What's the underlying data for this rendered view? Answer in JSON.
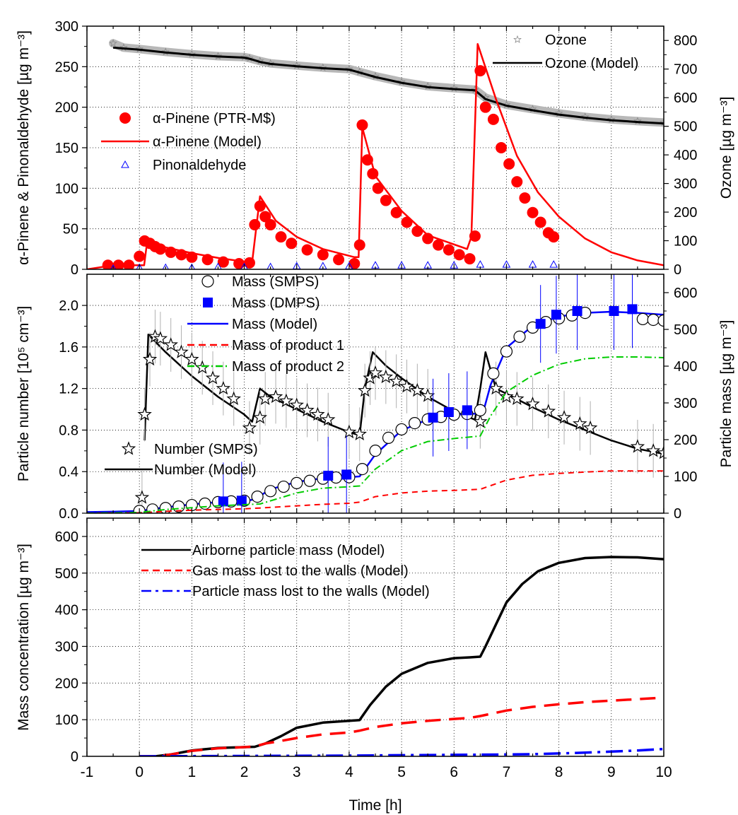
{
  "chart_data": [
    {
      "type": "scatter",
      "panel": "top",
      "xlim": [
        -1,
        10
      ],
      "ylim": [
        0,
        300
      ],
      "y2lim": [
        0,
        850
      ],
      "ylabel": "α-Pinene & Pinonaldehyde [µg m⁻³]",
      "y2label": "Ozone [µg m⁻³]",
      "yticks": [
        "0",
        "50",
        "100",
        "150",
        "200",
        "250",
        "300"
      ],
      "y2ticks": [
        "0",
        "100",
        "200",
        "300",
        "400",
        "500",
        "600",
        "700",
        "800"
      ],
      "grid": true,
      "legend_left": [
        {
          "label": "α-Pinene (PTR-M$)",
          "style": "red-dot"
        },
        {
          "label": "α-Pinene (Model)",
          "style": "red-line"
        },
        {
          "label": "Pinonaldehyde",
          "style": "blue-triangle"
        }
      ],
      "legend_right": [
        {
          "label": "Ozone",
          "style": "gray-star"
        },
        {
          "label": "Ozone  (Model)",
          "style": "black-line"
        }
      ],
      "series": [
        {
          "name": "Ozone",
          "axis": "right",
          "color": "#a0a0a0",
          "x": [
            -0.5,
            -0.3,
            0,
            0.5,
            1,
            1.5,
            2,
            2.1,
            2.3,
            2.5,
            3,
            3.5,
            4,
            4.2,
            4.5,
            5,
            5.5,
            6,
            6.4,
            6.6,
            7,
            7.5,
            8,
            8.5,
            9,
            9.5,
            10
          ],
          "y": [
            790,
            775,
            770,
            760,
            752,
            745,
            742,
            738,
            728,
            720,
            712,
            705,
            700,
            690,
            675,
            655,
            640,
            633,
            628,
            600,
            575,
            560,
            545,
            533,
            524,
            518,
            513
          ]
        },
        {
          "name": "Ozone  (Model)",
          "axis": "right",
          "color": "#000000",
          "x": [
            -0.5,
            0,
            0.5,
            1,
            1.5,
            2,
            2.1,
            2.3,
            2.5,
            3,
            3.5,
            4,
            4.2,
            4.5,
            5,
            5.5,
            6,
            6.4,
            6.6,
            7,
            7.5,
            8,
            8.5,
            9,
            9.5,
            10
          ],
          "y": [
            775,
            768,
            758,
            750,
            744,
            740,
            736,
            725,
            718,
            710,
            703,
            698,
            688,
            672,
            652,
            637,
            630,
            626,
            595,
            572,
            556,
            541,
            530,
            521,
            515,
            510
          ]
        },
        {
          "name": "α-Pinene (Model)",
          "axis": "left",
          "color": "#ff0000",
          "x": [
            -1,
            -0.5,
            0,
            0.09,
            0.15,
            0.5,
            1,
            1.5,
            2.05,
            2.15,
            2.3,
            2.6,
            3,
            3.5,
            4.1,
            4.18,
            4.25,
            4.5,
            5,
            5.5,
            6.25,
            6.33,
            6.45,
            6.8,
            7.2,
            7.6,
            8,
            8.5,
            9,
            9.5,
            10
          ],
          "y": [
            0,
            5,
            5,
            5,
            35,
            27,
            20,
            14,
            9,
            9,
            90,
            60,
            40,
            25,
            15,
            15,
            175,
            115,
            72,
            42,
            25,
            40,
            278,
            210,
            140,
            95,
            65,
            38,
            21,
            11,
            5
          ]
        },
        {
          "name": "α-Pinene (PTR-M$)",
          "axis": "left",
          "color": "#ff0000",
          "x": [
            -0.6,
            -0.4,
            -0.2,
            0,
            0.1,
            0.2,
            0.3,
            0.4,
            0.6,
            0.8,
            1,
            1.3,
            1.6,
            1.9,
            2.1,
            2.2,
            2.3,
            2.4,
            2.5,
            2.7,
            2.9,
            3.2,
            3.5,
            3.8,
            4.1,
            4.2,
            4.25,
            4.35,
            4.45,
            4.55,
            4.7,
            4.9,
            5.1,
            5.3,
            5.5,
            5.7,
            5.9,
            6.1,
            6.3,
            6.4,
            6.5,
            6.6,
            6.75,
            6.9,
            7.05,
            7.2,
            7.35,
            7.5,
            7.65,
            7.8,
            7.9
          ],
          "y": [
            5,
            5,
            5,
            16,
            35,
            32,
            28,
            25,
            21,
            18,
            15,
            12,
            9,
            7,
            8,
            55,
            78,
            65,
            55,
            40,
            32,
            24,
            18,
            12,
            7,
            30,
            178,
            135,
            118,
            100,
            85,
            70,
            58,
            47,
            38,
            30,
            24,
            18,
            13,
            41,
            245,
            200,
            185,
            150,
            130,
            108,
            88,
            70,
            58,
            45,
            40
          ]
        },
        {
          "name": "Pinonaldehyde",
          "axis": "left",
          "color": "#0000ff",
          "x": [
            -0.5,
            0,
            0.5,
            1,
            1.5,
            2,
            2.5,
            3,
            3.5,
            4,
            4.5,
            5,
            5.5,
            6,
            6.5,
            7,
            7.5,
            7.9
          ],
          "y": [
            1,
            2,
            2,
            2,
            3,
            3,
            3,
            4,
            4,
            4,
            5,
            5,
            5,
            5,
            6,
            6,
            6,
            6
          ]
        }
      ]
    },
    {
      "type": "scatter",
      "panel": "middle",
      "xlim": [
        -1,
        10
      ],
      "ylim": [
        0,
        2.3
      ],
      "y2lim": [
        0,
        650
      ],
      "ylabel": "Particle number [10⁵ cm⁻³]",
      "y2label": "Particle mass [µg m⁻³]",
      "yticks": [
        "0.0",
        "0.4",
        "0.8",
        "1.2",
        "1.6",
        "2.0"
      ],
      "y2ticks": [
        "0",
        "100",
        "200",
        "300",
        "400",
        "500",
        "600"
      ],
      "grid": true,
      "legend_top": [
        {
          "label": "Mass (SMPS)",
          "style": "open-circle"
        },
        {
          "label": "Mass (DMPS)",
          "style": "blue-square"
        },
        {
          "label": "Mass (Model)",
          "style": "blue-line"
        },
        {
          "label": "Mass of product 1",
          "style": "red-dash"
        },
        {
          "label": "Mass of product 2",
          "style": "green-dashdot"
        }
      ],
      "legend_bottom": [
        {
          "label": "Number (SMPS)",
          "style": "open-star"
        },
        {
          "label": "Number (Model)",
          "style": "black-line"
        }
      ],
      "series": [
        {
          "name": "Number (Model)",
          "axis": "left",
          "color": "#000000",
          "x": [
            0.1,
            0.17,
            0.5,
            1,
            1.5,
            2,
            2.15,
            2.3,
            2.5,
            3,
            3.5,
            4,
            4.2,
            4.3,
            4.45,
            4.7,
            5,
            5.5,
            6,
            6.4,
            6.5,
            6.6,
            6.8,
            7,
            7.5,
            8,
            8.5,
            9,
            9.5,
            10
          ],
          "y": [
            0.7,
            1.72,
            1.55,
            1.32,
            1.12,
            0.95,
            0.88,
            1.2,
            1.12,
            1.0,
            0.88,
            0.78,
            0.75,
            1.2,
            1.55,
            1.42,
            1.3,
            1.12,
            0.98,
            0.9,
            1.2,
            1.55,
            1.2,
            1.15,
            1.02,
            0.9,
            0.8,
            0.7,
            0.62,
            0.57
          ]
        },
        {
          "name": "Number (SMPS)",
          "axis": "left",
          "color": "#000000",
          "x": [
            0.05,
            0.1,
            0.2,
            0.3,
            0.4,
            0.6,
            0.8,
            1,
            1.2,
            1.4,
            1.6,
            1.8,
            2.1,
            2.3,
            2.4,
            2.6,
            2.8,
            3,
            3.2,
            3.4,
            3.6,
            4,
            4.2,
            4.3,
            4.4,
            4.5,
            4.7,
            4.9,
            5.1,
            5.3,
            5.5,
            6.5,
            6.8,
            7,
            7.2,
            7.5,
            7.8,
            8.1,
            8.4,
            8.6,
            9.5,
            9.8,
            10
          ],
          "y": [
            0.15,
            0.95,
            1.48,
            1.7,
            1.68,
            1.62,
            1.55,
            1.48,
            1.4,
            1.3,
            1.2,
            1.1,
            0.82,
            0.92,
            1.1,
            1.12,
            1.08,
            1.04,
            0.99,
            0.95,
            0.9,
            0.78,
            0.76,
            1.18,
            1.3,
            1.35,
            1.31,
            1.27,
            1.22,
            1.18,
            1.13,
            0.88,
            1.2,
            1.12,
            1.1,
            1.05,
            0.98,
            0.92,
            0.86,
            0.82,
            0.64,
            0.6,
            0.58
          ]
        },
        {
          "name": "Mass (Model)",
          "axis": "right",
          "color": "#0000ff",
          "x": [
            -1,
            -0.5,
            0,
            0.5,
            1,
            1.5,
            2,
            2.2,
            2.5,
            3,
            3.5,
            4,
            4.2,
            4.5,
            5,
            5.5,
            6,
            6.3,
            6.55,
            6.7,
            7,
            7.5,
            8,
            8.5,
            9,
            9.5,
            10
          ],
          "y": [
            3,
            4,
            6,
            16,
            24,
            30,
            32,
            38,
            65,
            85,
            95,
            98,
            100,
            160,
            225,
            255,
            268,
            270,
            272,
            350,
            450,
            510,
            535,
            545,
            548,
            545,
            540
          ]
        },
        {
          "name": "Mass (SMPS)",
          "axis": "right",
          "color": "#000000",
          "x": [
            0,
            0.25,
            0.5,
            0.75,
            1,
            1.25,
            1.5,
            1.75,
            2,
            2.25,
            2.5,
            2.75,
            3,
            3.25,
            3.5,
            3.75,
            4,
            4.25,
            4.5,
            4.75,
            5,
            5.25,
            5.5,
            5.75,
            6,
            6.25,
            6.5,
            6.75,
            7,
            7.25,
            7.5,
            7.75,
            8,
            8.25,
            8.5,
            9.6,
            9.8,
            10
          ],
          "y": [
            6,
            10,
            14,
            18,
            22,
            26,
            30,
            32,
            34,
            45,
            60,
            72,
            82,
            88,
            94,
            97,
            98,
            120,
            170,
            205,
            228,
            245,
            255,
            262,
            268,
            270,
            280,
            380,
            440,
            480,
            505,
            520,
            530,
            538,
            545,
            528,
            526,
            524
          ]
        },
        {
          "name": "Mass (DMPS)",
          "axis": "right",
          "color": "#0000ff",
          "x": [
            1.6,
            1.95,
            3.6,
            3.95,
            5.6,
            5.9,
            6.25,
            7.65,
            7.95,
            8.35,
            9.05,
            9.4
          ],
          "y": [
            32,
            34,
            102,
            105,
            260,
            275,
            280,
            515,
            540,
            550,
            550,
            555
          ]
        },
        {
          "name": "Mass of product 1",
          "axis": "right",
          "color": "#ff0000",
          "x": [
            -1,
            0,
            0.5,
            1,
            1.5,
            2,
            2.3,
            3,
            3.5,
            4,
            4.2,
            4.5,
            5,
            5.5,
            6,
            6.5,
            7,
            7.5,
            8,
            8.5,
            9,
            9.5,
            10
          ],
          "y": [
            0,
            1,
            5,
            8,
            10,
            12,
            14,
            20,
            24,
            27,
            30,
            45,
            55,
            60,
            62,
            65,
            90,
            103,
            108,
            112,
            115,
            115,
            115
          ]
        },
        {
          "name": "Mass of product 2",
          "axis": "right",
          "color": "#00cc00",
          "x": [
            -1,
            0,
            0.5,
            1,
            1.5,
            2,
            2.3,
            3,
            3.5,
            4,
            4.2,
            4.5,
            5,
            5.5,
            6,
            6.5,
            6.7,
            7,
            7.5,
            8,
            8.5,
            9,
            9.5,
            10
          ],
          "y": [
            0,
            2,
            10,
            15,
            20,
            23,
            25,
            55,
            68,
            72,
            74,
            120,
            170,
            195,
            203,
            210,
            265,
            330,
            375,
            405,
            420,
            425,
            425,
            423
          ]
        }
      ]
    },
    {
      "type": "line",
      "panel": "bottom",
      "xlim": [
        -1,
        10
      ],
      "ylim": [
        0,
        650
      ],
      "xlabel": "Time [h]",
      "ylabel": "Mass concentration [µg m⁻³]",
      "xticks": [
        "-1",
        "0",
        "1",
        "2",
        "3",
        "4",
        "5",
        "6",
        "7",
        "8",
        "9",
        "10"
      ],
      "yticks": [
        "0",
        "100",
        "200",
        "300",
        "400",
        "500",
        "600"
      ],
      "grid": true,
      "legend": [
        {
          "label": "Airborne particle mass (Model)",
          "style": "black-line"
        },
        {
          "label": "Gas mass lost to the walls (Model)",
          "style": "red-dash"
        },
        {
          "label": "Particle mass lost to the walls (Model)",
          "style": "blue-dashdot"
        }
      ],
      "series": [
        {
          "name": "Airborne particle mass (Model)",
          "color": "#000000",
          "x": [
            0,
            0.3,
            0.6,
            1,
            1.5,
            2,
            2.2,
            2.4,
            2.7,
            3,
            3.5,
            4,
            4.2,
            4.4,
            4.7,
            5,
            5.5,
            6,
            6.3,
            6.5,
            6.6,
            6.8,
            7,
            7.3,
            7.6,
            8,
            8.5,
            9,
            9.5,
            10
          ],
          "y": [
            0,
            0,
            5,
            16,
            23,
            25,
            26,
            35,
            55,
            78,
            92,
            97,
            99,
            140,
            190,
            225,
            255,
            268,
            270,
            272,
            300,
            360,
            420,
            470,
            505,
            528,
            541,
            544,
            543,
            538
          ]
        },
        {
          "name": "Gas mass lost to the walls (Model)",
          "color": "#ff0000",
          "x": [
            0,
            0.3,
            0.6,
            1,
            1.5,
            2,
            2.2,
            2.4,
            2.7,
            3,
            3.5,
            4,
            4.2,
            4.5,
            5,
            5.5,
            6,
            6.3,
            6.5,
            7,
            7.5,
            8,
            8.5,
            9,
            9.5,
            10
          ],
          "y": [
            0,
            0,
            5,
            15,
            22,
            25,
            27,
            35,
            42,
            50,
            60,
            65,
            70,
            80,
            90,
            97,
            102,
            105,
            110,
            125,
            135,
            142,
            148,
            152,
            156,
            160
          ]
        },
        {
          "name": "Particle mass lost to the walls (Model)",
          "color": "#0000ff",
          "x": [
            0,
            1,
            2,
            3,
            4,
            5,
            6,
            7,
            7.5,
            8,
            8.5,
            9,
            9.5,
            10
          ],
          "y": [
            0,
            0.5,
            1,
            1.5,
            2,
            3,
            4,
            5,
            6,
            8,
            10,
            13,
            16,
            20
          ]
        }
      ]
    }
  ]
}
